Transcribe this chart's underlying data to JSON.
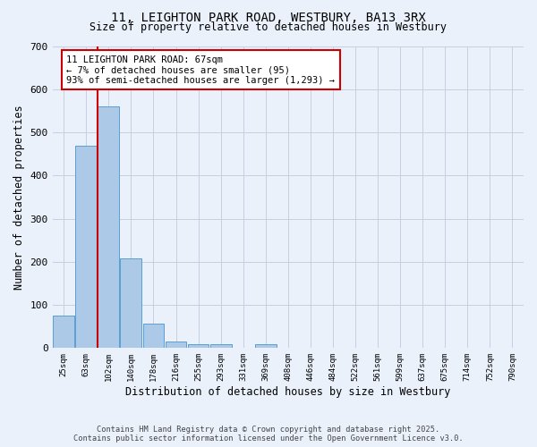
{
  "title_line1": "11, LEIGHTON PARK ROAD, WESTBURY, BA13 3RX",
  "title_line2": "Size of property relative to detached houses in Westbury",
  "xlabel": "Distribution of detached houses by size in Westbury",
  "ylabel": "Number of detached properties",
  "categories": [
    "25sqm",
    "63sqm",
    "102sqm",
    "140sqm",
    "178sqm",
    "216sqm",
    "255sqm",
    "293sqm",
    "331sqm",
    "369sqm",
    "408sqm",
    "446sqm",
    "484sqm",
    "522sqm",
    "561sqm",
    "599sqm",
    "637sqm",
    "675sqm",
    "714sqm",
    "752sqm",
    "790sqm"
  ],
  "values": [
    75,
    470,
    560,
    208,
    57,
    15,
    10,
    10,
    0,
    10,
    0,
    0,
    0,
    0,
    0,
    0,
    0,
    0,
    0,
    0,
    0
  ],
  "bar_color": "#adc9e8",
  "bar_edge_color": "#5a9fd4",
  "background_color": "#eaf1fb",
  "grid_color": "#c5cfe0",
  "red_line_x": 1.52,
  "annotation_text": "11 LEIGHTON PARK ROAD: 67sqm\n← 7% of detached houses are smaller (95)\n93% of semi-detached houses are larger (1,293) →",
  "annotation_box_color": "#ffffff",
  "annotation_box_edge": "#cc0000",
  "ylim": [
    0,
    700
  ],
  "yticks": [
    0,
    100,
    200,
    300,
    400,
    500,
    600,
    700
  ],
  "footer_line1": "Contains HM Land Registry data © Crown copyright and database right 2025.",
  "footer_line2": "Contains public sector information licensed under the Open Government Licence v3.0."
}
